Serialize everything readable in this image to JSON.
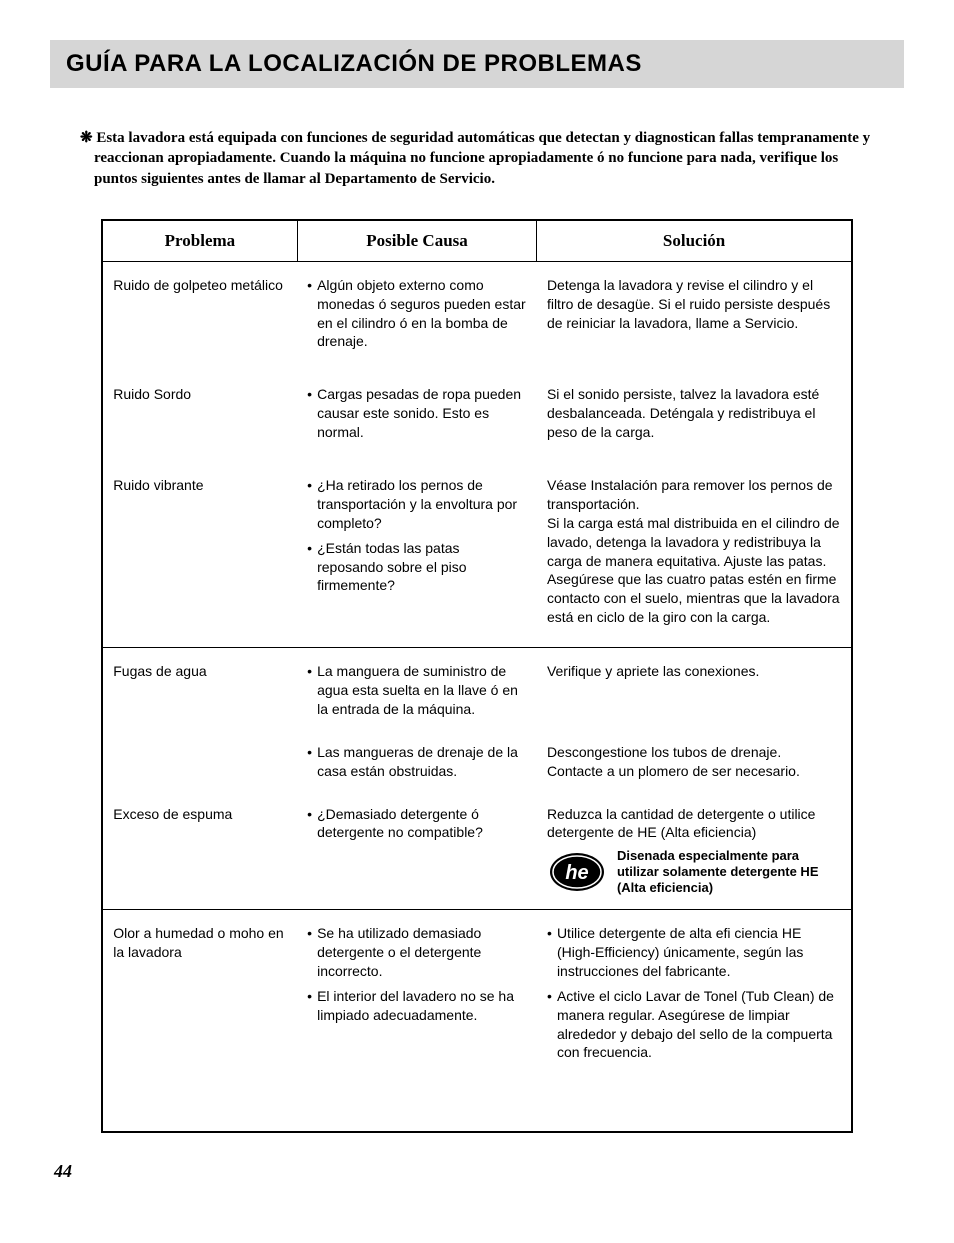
{
  "page": {
    "title": "GUÍA PARA LA LOCALIZACIÓN DE PROBLEMAS",
    "intro_marker": "❋ ",
    "intro": "Esta lavadora está equipada con funciones de seguridad automáticas que detectan y diagnostican fallas tempranamente y reaccionan apropiadamente. Cuando la máquina no funcione apropiadamente ó no funcione para nada, verifique los puntos siguientes antes de llamar al Departamento de Servicio.",
    "page_number": "44"
  },
  "headers": {
    "problem": "Problema",
    "cause": "Posible Causa",
    "solution": "Solución"
  },
  "rows": [
    {
      "problem": "Ruido de golpeteo metálico",
      "causes": [
        "Algún objeto externo como monedas ó seguros pueden estar en el cilindro ó en la bomba de drenaje."
      ],
      "solutions": [
        "Detenga la lavadora y revise el cilindro y el filtro de desagüe. Si el ruido persiste después de reiniciar la lavadora, llame a Servicio."
      ],
      "sol_bulleted": false
    },
    {
      "problem": "Ruido Sordo",
      "causes": [
        "Cargas pesadas de ropa pueden causar este sonido. Esto es normal."
      ],
      "solutions": [
        "Si el sonido persiste, talvez la lavadora esté desbalanceada. Deténgala y redistribuya el peso de la carga."
      ],
      "sol_bulleted": false
    },
    {
      "problem": "Ruido vibrante",
      "causes": [
        "¿Ha retirado los pernos de transportación y la envoltura por completo?",
        "¿Están todas las patas reposando sobre el piso firmemente?"
      ],
      "solutions": [
        "Véase Instalación para remover los pernos de transportación.\nSi la carga está mal distribuida en el cilindro de lavado, detenga la lavadora y redistribuya la carga de manera equitativa. Ajuste las patas.\nAsegúrese que las cuatro patas estén en firme contacto con el suelo, mientras que la lavadora está en ciclo de la giro con la carga."
      ],
      "sol_bulleted": false
    }
  ],
  "rows2": [
    {
      "problem": "Fugas de agua",
      "causes": [
        "La manguera de suministro de agua esta suelta en la llave ó en la entrada de la máquina."
      ],
      "solutions": [
        "Verifique y apriete las conexiones."
      ],
      "sol_bulleted": false
    },
    {
      "problem": "",
      "causes": [
        "Las mangueras de drenaje de la casa están obstruidas."
      ],
      "solutions": [
        "Descongestione los tubos de drenaje. Contacte a un plomero de ser necesario."
      ],
      "sol_bulleted": false
    },
    {
      "problem": "Exceso de espuma",
      "causes": [
        "¿Demasiado detergente ó detergente no compatible?"
      ],
      "solutions": [
        "Reduzca la cantidad de detergente o utilice detergente de HE (Alta eficiencia)"
      ],
      "sol_bulleted": false,
      "he_note": "Disenada especialmente para utilizar solamente detergente HE (Alta eficiencia)"
    }
  ],
  "rows3": [
    {
      "problem": "Olor a humedad o moho en la lavadora",
      "causes": [
        "Se ha utilizado demasiado detergente o el detergente incorrecto.",
        "El interior del lavadero no se ha limpiado adecuadamente."
      ],
      "solutions": [
        "Utilice detergente de alta efi ciencia HE (High-Efficiency) únicamente, según las instrucciones del fabricante.",
        "Active el ciclo Lavar de Tonel (Tub Clean) de manera regular. Asegúrese de limpiar  alrededor y debajo del sello de la compuerta con frecuencia."
      ],
      "sol_bulleted": true
    }
  ],
  "style": {
    "title_bg": "#d6d6d6",
    "border": "#000000",
    "body_font_size": 14,
    "header_font_size": 17,
    "title_font_size": 24
  }
}
